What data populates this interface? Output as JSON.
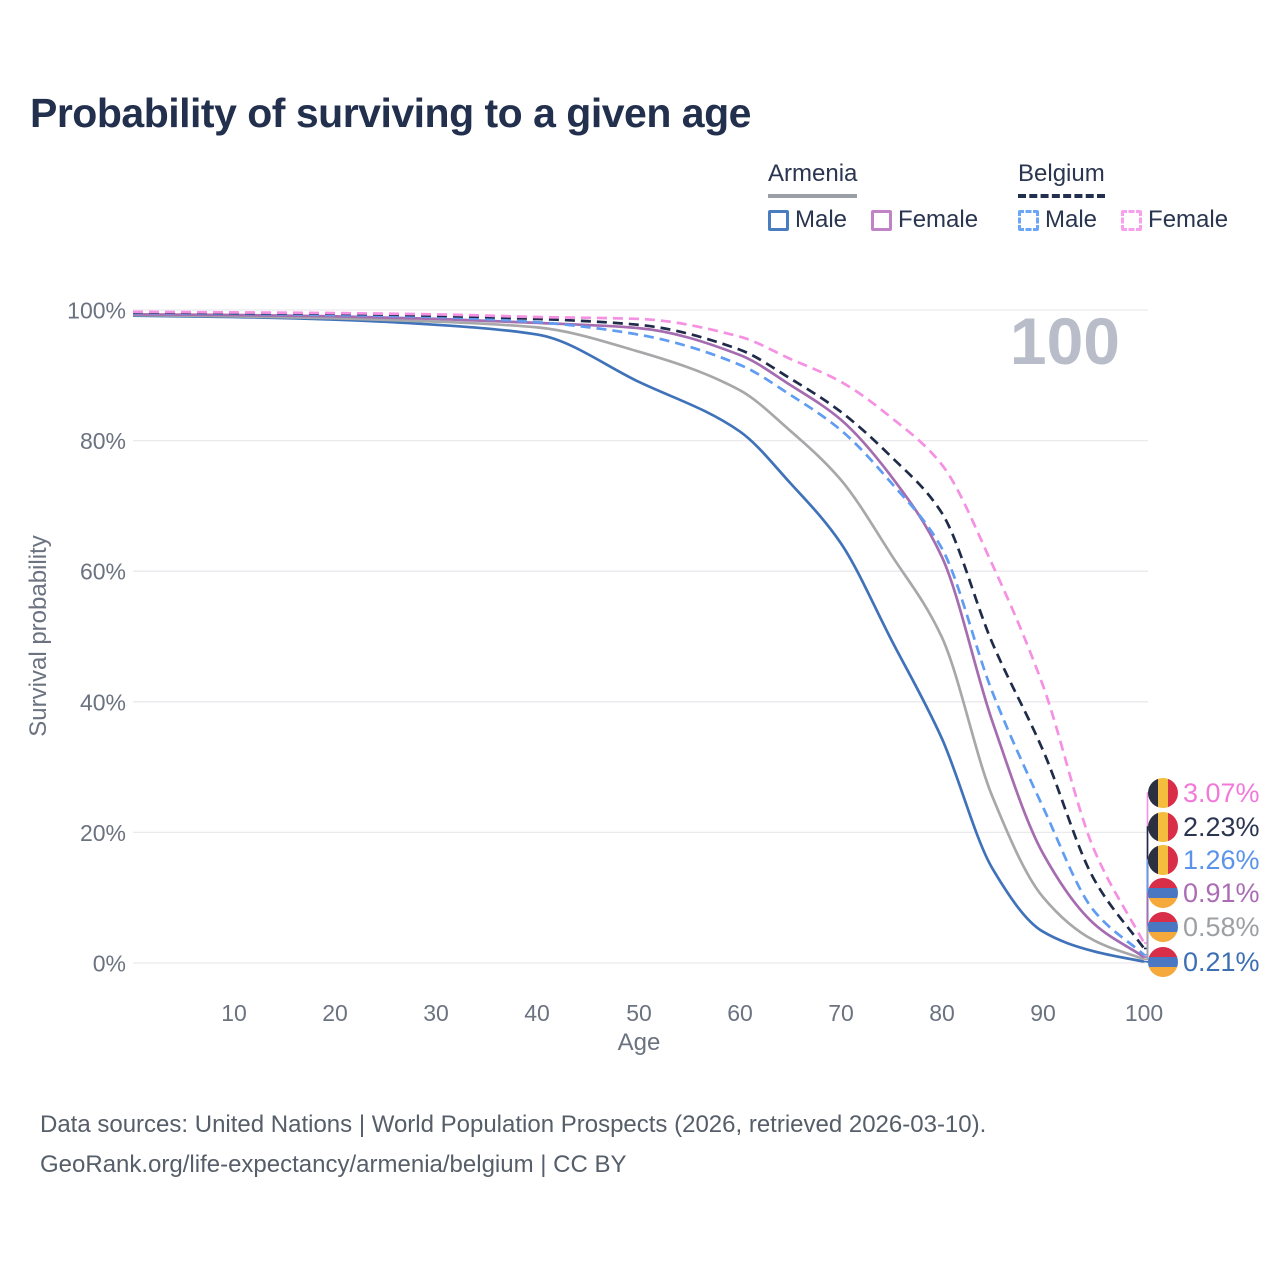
{
  "title": "Probability of surviving to a given age",
  "legend": {
    "groups": [
      {
        "name": "Armenia",
        "underline_style": "solid",
        "underline_color": "#9aa0a6",
        "items": [
          {
            "label": "Male",
            "swatch_color": "#4a7dbf",
            "swatch_style": "solid"
          },
          {
            "label": "Female",
            "swatch_color": "#c083c6",
            "swatch_style": "solid"
          }
        ]
      },
      {
        "name": "Belgium",
        "underline_style": "dashed",
        "underline_color": "#232f4e",
        "items": [
          {
            "label": "Male",
            "swatch_color": "#6ba6f7",
            "swatch_style": "dashed"
          },
          {
            "label": "Female",
            "swatch_color": "#f9a0ec",
            "swatch_style": "dashed"
          }
        ]
      }
    ]
  },
  "chart_data": {
    "type": "line",
    "title": "Probability of surviving to a given age",
    "xlabel": "Age",
    "ylabel": "Survival probability",
    "xlim": [
      0,
      100
    ],
    "ylim": [
      0,
      100
    ],
    "grid": "horizontal",
    "legend_position": "top-right",
    "hover_age_watermark": "100",
    "xticks": [
      "10",
      "20",
      "30",
      "40",
      "50",
      "60",
      "70",
      "80",
      "90",
      "100"
    ],
    "yticks": [
      "100%",
      "80%",
      "60%",
      "40%",
      "20%",
      "0%"
    ],
    "x": [
      0,
      10,
      20,
      30,
      40,
      50,
      60,
      65,
      70,
      75,
      80,
      85,
      90,
      95,
      100
    ],
    "series": [
      {
        "name": "Armenia Male",
        "country": "Armenia",
        "sex": "Male",
        "style": "solid",
        "color": "#3f72b8",
        "values": [
          99.1,
          98.9,
          98.5,
          97.7,
          96.2,
          89.0,
          81.4,
          73.5,
          64.3,
          49.5,
          34.4,
          14.5,
          4.8,
          1.8,
          0.21
        ],
        "end_label": "0.21%"
      },
      {
        "name": "Armenia",
        "country": "Armenia",
        "sex": "Both",
        "style": "solid",
        "color": "#a8a8aa",
        "values": [
          99.2,
          99.0,
          98.7,
          98.2,
          97.3,
          93.6,
          87.7,
          81.5,
          74.0,
          62.5,
          49.9,
          25.5,
          10.1,
          3.5,
          0.58
        ],
        "end_label": "0.58%"
      },
      {
        "name": "Armenia Female",
        "country": "Armenia",
        "sex": "Female",
        "style": "solid",
        "color": "#a56db0",
        "values": [
          99.3,
          99.2,
          99.0,
          98.6,
          98.0,
          97.2,
          93.1,
          88.5,
          83.2,
          74.5,
          62.2,
          37.0,
          16.8,
          6.1,
          0.91
        ],
        "end_label": "0.91%"
      },
      {
        "name": "Belgium Male",
        "country": "Belgium",
        "sex": "Male",
        "style": "dashed",
        "color": "#5f9cf2",
        "values": [
          99.5,
          99.4,
          99.2,
          98.9,
          98.1,
          96.2,
          91.6,
          87.0,
          81.6,
          73.5,
          63.5,
          41.5,
          23.9,
          8.1,
          1.26
        ],
        "end_label": "1.26%"
      },
      {
        "name": "Belgium",
        "country": "Belgium",
        "sex": "Both",
        "style": "dashed",
        "color": "#1f2b49",
        "values": [
          99.6,
          99.5,
          99.4,
          99.1,
          98.6,
          97.7,
          93.9,
          89.5,
          84.4,
          77.5,
          68.9,
          49.0,
          32.6,
          13.0,
          2.23
        ],
        "end_label": "2.23%"
      },
      {
        "name": "Belgium Female",
        "country": "Belgium",
        "sex": "Female",
        "style": "dashed",
        "color": "#f590e2",
        "values": [
          99.7,
          99.6,
          99.5,
          99.3,
          98.9,
          98.6,
          95.9,
          92.5,
          89.0,
          83.5,
          76.3,
          61.0,
          42.5,
          17.6,
          3.07
        ],
        "end_label": "3.07%"
      }
    ]
  },
  "end_labels": [
    {
      "text": "3.07%",
      "color": "#f279d9",
      "flag": "belgium",
      "series": "Belgium Female"
    },
    {
      "text": "2.23%",
      "color": "#2a3550",
      "flag": "belgium",
      "series": "Belgium"
    },
    {
      "text": "1.26%",
      "color": "#5b93ea",
      "flag": "belgium",
      "series": "Belgium Male"
    },
    {
      "text": "0.91%",
      "color": "#ac6cb5",
      "flag": "armenia",
      "series": "Armenia Female"
    },
    {
      "text": "0.58%",
      "color": "#9da0a3",
      "flag": "armenia",
      "series": "Armenia"
    },
    {
      "text": "0.21%",
      "color": "#3c6fb4",
      "flag": "armenia",
      "series": "Armenia Male"
    }
  ],
  "flags": {
    "belgium": [
      "#2b3040",
      "#f5bd3e",
      "#d92e47"
    ],
    "armenia": [
      "#d92e47",
      "#4a77c2",
      "#f5a93b"
    ]
  },
  "footer": {
    "line1": "Data sources: United Nations | World Population Prospects (2026, retrieved 2026-03-10).",
    "line2": "GeoRank.org/life-expectancy/armenia/belgium | CC BY"
  }
}
